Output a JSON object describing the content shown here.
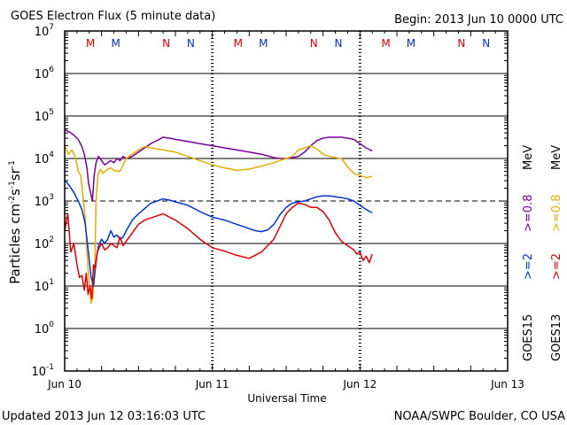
{
  "header": {
    "title": "GOES Electron Flux (5 minute data)",
    "begin": "Begin: 2013 Jun 10 0000 UTC"
  },
  "footer": {
    "updated": "Updated 2013 Jun 12 03:16:03 UTC",
    "credit": "NOAA/SWPC Boulder, CO USA"
  },
  "colors": {
    "goes15_08": "#7b0099",
    "goes15_2": "#0033cc",
    "goes13_08": "#e6ac00",
    "goes13_2": "#dd0000",
    "axis": "#000000"
  },
  "chart_data": {
    "type": "line",
    "title": "GOES Electron Flux (5 minute data)",
    "xlabel": "Universal Time",
    "ylabel_base": "Particles cm",
    "ylabel_sup1": "-2",
    "ylabel_mid1": "s",
    "ylabel_sup2": "-1",
    "ylabel_mid2": "sr",
    "ylabel_sup3": "-1",
    "x_unit": "hours since 2013 Jun 10 0000 UTC",
    "xlim": [
      0,
      72
    ],
    "ylim_log10": [
      -1,
      7
    ],
    "x_ticks": [
      {
        "label": "Jun 10",
        "value": 0
      },
      {
        "label": "Jun 11",
        "value": 24
      },
      {
        "label": "Jun 12",
        "value": 48
      },
      {
        "label": "Jun 13",
        "value": 72
      }
    ],
    "y_ticks": [
      {
        "base": "10",
        "exp": "7",
        "value": 7
      },
      {
        "base": "10",
        "exp": "6",
        "value": 6
      },
      {
        "base": "10",
        "exp": "5",
        "value": 5
      },
      {
        "base": "10",
        "exp": "4",
        "value": 4
      },
      {
        "base": "10",
        "exp": "3",
        "value": 3
      },
      {
        "base": "10",
        "exp": "2",
        "value": 2
      },
      {
        "base": "10",
        "exp": "1",
        "value": 1
      },
      {
        "base": "10",
        "exp": "0",
        "value": 0
      },
      {
        "base": "10",
        "exp": "-1",
        "value": -1
      }
    ],
    "dashed_threshold_log10": 3,
    "mn_markers": [
      {
        "letter": "M",
        "hour": 4.2,
        "color": "#dd0000"
      },
      {
        "letter": "M",
        "hour": 8.3,
        "color": "#0033cc"
      },
      {
        "letter": "N",
        "hour": 16.5,
        "color": "#dd0000"
      },
      {
        "letter": "N",
        "hour": 20.5,
        "color": "#0033cc"
      },
      {
        "letter": "M",
        "hour": 28.2,
        "color": "#dd0000"
      },
      {
        "letter": "M",
        "hour": 32.3,
        "color": "#0033cc"
      },
      {
        "letter": "N",
        "hour": 40.5,
        "color": "#dd0000"
      },
      {
        "letter": "N",
        "hour": 44.5,
        "color": "#0033cc"
      },
      {
        "letter": "M",
        "hour": 52.2,
        "color": "#dd0000"
      },
      {
        "letter": "M",
        "hour": 56.3,
        "color": "#0033cc"
      },
      {
        "letter": "N",
        "hour": 64.5,
        "color": "#dd0000"
      },
      {
        "letter": "N",
        "hour": 68.5,
        "color": "#0033cc"
      }
    ],
    "legend": {
      "placement": "right",
      "goes15": "GOES15",
      "goes13": "GOES13",
      "mev": "MeV",
      "entries": [
        {
          "label": ">=2",
          "color": "#0033cc",
          "group": "goes15"
        },
        {
          "label": ">=0.8",
          "color": "#7b0099",
          "group": "goes15"
        },
        {
          "label": ">=2",
          "color": "#dd0000",
          "group": "goes13"
        },
        {
          "label": ">=0.8",
          "color": "#e6ac00",
          "group": "goes13"
        }
      ]
    },
    "series": [
      {
        "name": "GOES15 >=0.8 MeV",
        "color": "#7b0099",
        "x": [
          0,
          0.8,
          1.5,
          2.2,
          2.8,
          3.2,
          3.6,
          3.9,
          4.2,
          4.5,
          4.8,
          5.1,
          5.5,
          6,
          6.5,
          7,
          7.5,
          8,
          8.5,
          9,
          9.5,
          10,
          11,
          12,
          13,
          14,
          15,
          16,
          17,
          18,
          20,
          22,
          24,
          26,
          28,
          30,
          32,
          34,
          35,
          36,
          37,
          38,
          39,
          40,
          41,
          42,
          43,
          44,
          45,
          46,
          47,
          48,
          49,
          50
        ],
        "log10": [
          4.68,
          4.62,
          4.55,
          4.45,
          4.28,
          4.1,
          3.8,
          3.4,
          3.2,
          3.0,
          3.6,
          3.9,
          4.05,
          3.95,
          3.85,
          3.9,
          3.95,
          3.9,
          4.0,
          3.95,
          4.05,
          4.0,
          4.05,
          4.15,
          4.25,
          4.35,
          4.42,
          4.5,
          4.48,
          4.45,
          4.4,
          4.35,
          4.3,
          4.25,
          4.2,
          4.15,
          4.1,
          4.02,
          4.0,
          4.0,
          4.02,
          4.05,
          4.15,
          4.3,
          4.42,
          4.48,
          4.5,
          4.5,
          4.5,
          4.48,
          4.45,
          4.35,
          4.25,
          4.18
        ]
      },
      {
        "name": "GOES13 >=0.8 MeV",
        "color": "#e6ac00",
        "x": [
          0,
          0.6,
          1.2,
          1.8,
          2.2,
          2.6,
          3.0,
          3.4,
          3.7,
          4.0,
          4.3,
          4.6,
          4.9,
          5.1,
          5.4,
          5.8,
          6.2,
          6.6,
          7,
          7.5,
          8,
          8.5,
          9,
          9.5,
          10,
          11,
          12,
          13,
          14,
          16,
          18,
          20,
          22,
          24,
          26,
          28,
          30,
          32,
          34,
          36,
          37,
          38,
          39,
          40,
          41,
          42,
          43,
          44,
          45,
          46,
          47,
          48,
          49,
          50
        ],
        "log10": [
          4.3,
          4.1,
          4.2,
          4.0,
          3.7,
          3.6,
          3.1,
          2.5,
          1.6,
          1.0,
          0.6,
          0.75,
          1.4,
          3.0,
          3.6,
          3.75,
          3.65,
          3.7,
          3.75,
          3.78,
          3.72,
          3.7,
          3.7,
          3.85,
          4.0,
          4.1,
          4.2,
          4.28,
          4.25,
          4.2,
          4.15,
          4.05,
          3.95,
          3.85,
          3.78,
          3.72,
          3.75,
          3.82,
          3.9,
          4.0,
          4.05,
          4.2,
          4.25,
          4.3,
          4.22,
          4.1,
          4.05,
          4.02,
          4.0,
          3.8,
          3.65,
          3.6,
          3.55,
          3.58
        ]
      },
      {
        "name": "GOES15 >=2 MeV",
        "color": "#0033cc",
        "x": [
          0,
          0.8,
          1.5,
          2.2,
          2.8,
          3.3,
          3.7,
          4.0,
          4.3,
          4.7,
          5.1,
          5.5,
          6,
          6.5,
          7,
          7.5,
          8,
          8.5,
          9,
          9.5,
          10,
          11,
          12,
          13,
          14,
          15,
          16,
          17,
          18,
          20,
          22,
          24,
          26,
          28,
          30,
          31,
          32,
          33,
          34,
          35,
          36,
          37,
          38,
          39,
          40,
          41,
          42,
          43,
          44,
          45,
          46,
          47,
          48,
          49,
          50
        ],
        "log10": [
          3.5,
          3.35,
          3.2,
          3.0,
          2.8,
          2.5,
          2.0,
          1.6,
          1.2,
          1.0,
          1.6,
          1.95,
          2.1,
          2.0,
          2.1,
          2.3,
          2.15,
          2.2,
          2.1,
          2.15,
          2.3,
          2.55,
          2.7,
          2.82,
          2.95,
          3.0,
          3.05,
          3.02,
          2.98,
          2.9,
          2.75,
          2.62,
          2.55,
          2.45,
          2.35,
          2.3,
          2.28,
          2.32,
          2.45,
          2.68,
          2.85,
          2.95,
          2.98,
          3.0,
          3.05,
          3.1,
          3.12,
          3.12,
          3.1,
          3.08,
          3.05,
          3.0,
          2.9,
          2.8,
          2.72
        ]
      },
      {
        "name": "GOES13 >=2 MeV",
        "color": "#dd0000",
        "x": [
          0,
          0.5,
          1.0,
          1.5,
          2.0,
          2.4,
          2.8,
          3.2,
          3.5,
          3.8,
          4.1,
          4.4,
          4.7,
          5.0,
          5.3,
          5.6,
          6,
          6.5,
          7,
          7.5,
          8,
          8.5,
          9,
          9.5,
          10,
          11,
          12,
          13,
          14,
          15,
          16,
          17,
          18,
          20,
          22,
          24,
          26,
          28,
          30,
          32,
          34,
          35,
          36,
          37,
          38,
          39,
          40,
          41,
          42,
          43,
          44,
          45,
          46,
          47,
          47.5,
          48,
          48.5,
          49,
          49.5,
          50
        ],
        "log10": [
          2.3,
          2.7,
          1.8,
          2.0,
          1.5,
          1.2,
          1.25,
          0.9,
          1.3,
          0.8,
          1.0,
          0.7,
          1.5,
          1.4,
          1.8,
          1.9,
          2.0,
          1.85,
          1.9,
          2.0,
          1.95,
          1.9,
          2.15,
          1.95,
          2.05,
          2.25,
          2.45,
          2.55,
          2.6,
          2.65,
          2.7,
          2.62,
          2.55,
          2.35,
          2.1,
          1.9,
          1.82,
          1.72,
          1.65,
          1.8,
          2.1,
          2.4,
          2.7,
          2.85,
          2.95,
          2.92,
          2.85,
          2.85,
          2.75,
          2.55,
          2.25,
          2.05,
          1.95,
          1.85,
          1.75,
          1.8,
          1.6,
          1.7,
          1.55,
          1.75
        ]
      }
    ]
  }
}
